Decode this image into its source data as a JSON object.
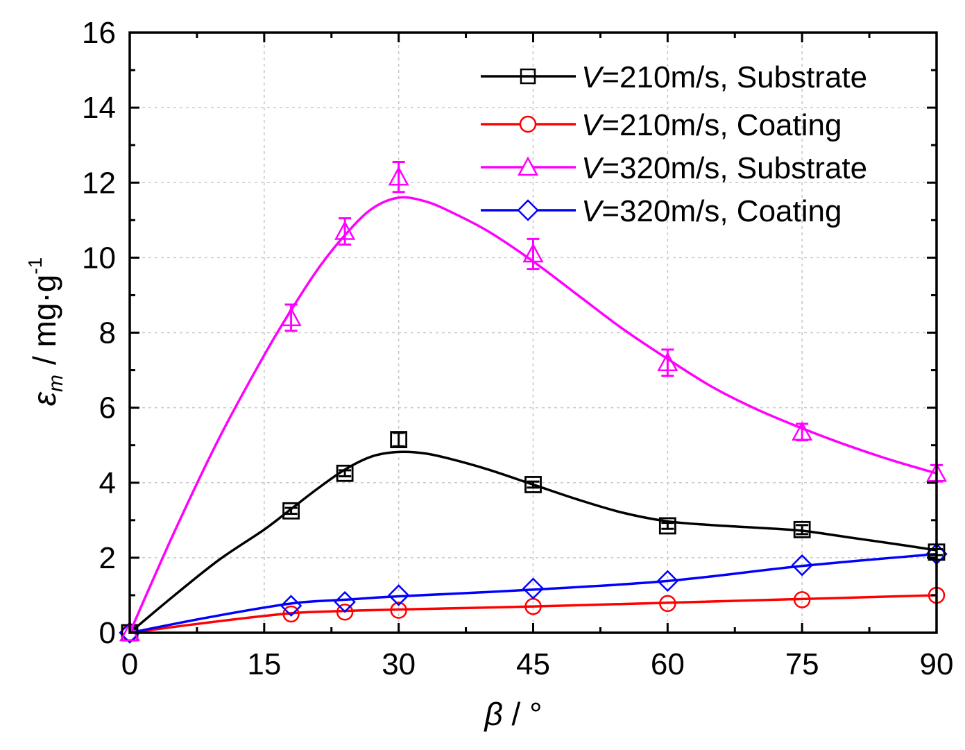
{
  "chart_data": {
    "type": "line",
    "title": "",
    "xlabel_symbol": "β",
    "xlabel_unit": " / °",
    "ylabel_symbol": "ε",
    "ylabel_subscript": "m",
    "ylabel_unit": "/ mg·g",
    "ylabel_exponent": "-1",
    "xlim": [
      0,
      90
    ],
    "ylim": [
      0,
      16
    ],
    "xticks": [
      0,
      15,
      30,
      45,
      60,
      75,
      90
    ],
    "yticks": [
      0,
      2,
      4,
      6,
      8,
      10,
      12,
      14,
      16
    ],
    "grid": true,
    "legend_position": "top-right",
    "series": [
      {
        "name_prefix": "V",
        "name_suffix": "=210m/s, Substrate",
        "color": "#000000",
        "marker": "square",
        "x": [
          0,
          18,
          24,
          30,
          45,
          60,
          75,
          90
        ],
        "y": [
          0,
          3.25,
          4.25,
          5.15,
          3.95,
          2.85,
          2.75,
          2.15
        ],
        "err": [
          0,
          0.08,
          0.08,
          0.18,
          0.08,
          0.08,
          0.12,
          0.08
        ],
        "fit_x": [
          0,
          5,
          10,
          15,
          18,
          21,
          24,
          27,
          30,
          33,
          36,
          40,
          45,
          50,
          55,
          60,
          65,
          70,
          75,
          80,
          85,
          90
        ],
        "fit_y": [
          0,
          1.0,
          1.95,
          2.75,
          3.3,
          3.85,
          4.35,
          4.7,
          4.82,
          4.78,
          4.62,
          4.35,
          3.95,
          3.55,
          3.2,
          2.97,
          2.87,
          2.8,
          2.72,
          2.55,
          2.38,
          2.2
        ]
      },
      {
        "name_prefix": "V",
        "name_suffix": "=210m/s, Coating",
        "color": "#ff0000",
        "marker": "circle",
        "x": [
          0,
          18,
          24,
          30,
          45,
          60,
          75,
          90
        ],
        "y": [
          0,
          0.5,
          0.55,
          0.6,
          0.7,
          0.78,
          0.88,
          1.0
        ],
        "err": [
          0,
          0,
          0,
          0,
          0,
          0,
          0,
          0
        ],
        "fit_x": [
          0,
          9,
          18,
          24,
          30,
          45,
          60,
          75,
          90
        ],
        "fit_y": [
          0,
          0.28,
          0.52,
          0.58,
          0.62,
          0.7,
          0.8,
          0.9,
          1.0
        ]
      },
      {
        "name_prefix": "V",
        "name_suffix": "=320m/s, Substrate",
        "color": "#ff00ff",
        "marker": "triangle",
        "x": [
          0,
          18,
          24,
          30,
          45,
          60,
          75,
          90
        ],
        "y": [
          0,
          8.4,
          10.7,
          12.15,
          10.1,
          7.2,
          5.35,
          4.25
        ],
        "err": [
          0,
          0.35,
          0.35,
          0.4,
          0.4,
          0.35,
          0.22,
          0.22
        ],
        "fit_x": [
          0,
          5,
          10,
          15,
          18,
          21,
          24,
          27,
          30,
          33,
          36,
          40,
          45,
          50,
          55,
          60,
          65,
          70,
          75,
          80,
          85,
          90
        ],
        "fit_y": [
          0,
          2.7,
          5.2,
          7.4,
          8.6,
          9.7,
          10.6,
          11.3,
          11.6,
          11.5,
          11.2,
          10.7,
          9.9,
          9.0,
          8.1,
          7.3,
          6.55,
          5.95,
          5.45,
          5.0,
          4.6,
          4.25
        ]
      },
      {
        "name_prefix": "V",
        "name_suffix": "=320m/s, Coating",
        "color": "#0000ff",
        "marker": "diamond",
        "x": [
          0,
          18,
          24,
          30,
          45,
          60,
          75,
          90
        ],
        "y": [
          0,
          0.72,
          0.82,
          1.0,
          1.18,
          1.38,
          1.8,
          2.1
        ],
        "err": [
          0,
          0,
          0,
          0,
          0,
          0,
          0,
          0
        ],
        "fit_x": [
          0,
          9,
          18,
          24,
          30,
          45,
          60,
          75,
          90
        ],
        "fit_y": [
          0,
          0.42,
          0.78,
          0.88,
          0.97,
          1.15,
          1.38,
          1.78,
          2.1
        ]
      }
    ]
  }
}
